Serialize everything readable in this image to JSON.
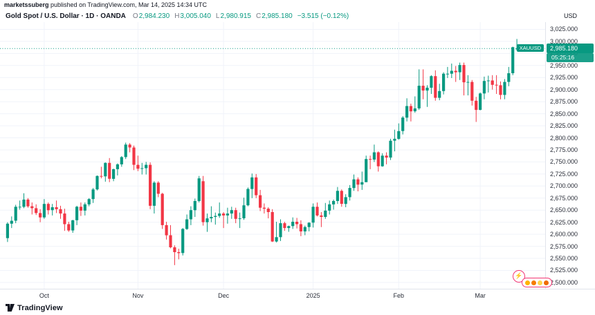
{
  "publisher_bar": {
    "author": "marketssuberg",
    "text": " published on TradingView.com, Mar 14, 2025 14:34 UTC"
  },
  "header": {
    "symbol_title": "Gold Spot / U.S. Dollar · 1D · OANDA",
    "ohlc": {
      "o_label": "O",
      "o": "2,984.230",
      "h_label": "H",
      "h": "3,005.040",
      "l_label": "L",
      "l": "2,980.915",
      "c_label": "C",
      "c": "2,985.180",
      "change": "−3.515 (−0.12%)"
    }
  },
  "price_line": {
    "symbol_label": "XAUUSD",
    "price_label": "2,985.180",
    "countdown": "05:25:16"
  },
  "price_axis": {
    "currency": "USD"
  },
  "footer": {
    "logo_text": "TradingView"
  },
  "reactions": {
    "lightning": "⚡"
  },
  "chart_data": {
    "type": "candlestick",
    "title": "Gold Spot / U.S. Dollar, 1D, OANDA",
    "symbol": "XAUUSD",
    "ylabel": "USD",
    "ylim": [
      2487,
      3040
    ],
    "grid": true,
    "colors": {
      "up": "#089981",
      "down": "#f23645"
    },
    "last_price": 2985.18,
    "last_ohlc": {
      "open": 2984.23,
      "high": 3005.04,
      "low": 2980.915,
      "close": 2985.18
    },
    "price_ticks": [
      3025,
      3000,
      2975,
      2950,
      2925,
      2900,
      2875,
      2850,
      2825,
      2800,
      2775,
      2750,
      2725,
      2700,
      2675,
      2650,
      2625,
      2600,
      2575,
      2550,
      2525,
      2500
    ],
    "time_ticks": [
      {
        "label": "Oct",
        "index": 9
      },
      {
        "label": "Nov",
        "index": 32
      },
      {
        "label": "Dec",
        "index": 53
      },
      {
        "label": "2025",
        "index": 75
      },
      {
        "label": "Feb",
        "index": 96
      },
      {
        "label": "Mar",
        "index": 116
      }
    ],
    "candles": [
      [
        2592,
        2625,
        2584,
        2622
      ],
      [
        2622,
        2637,
        2613,
        2628
      ],
      [
        2628,
        2661,
        2623,
        2657
      ],
      [
        2657,
        2670,
        2651,
        2657
      ],
      [
        2657,
        2685,
        2654,
        2672
      ],
      [
        2672,
        2675,
        2655,
        2658
      ],
      [
        2658,
        2666,
        2641,
        2654
      ],
      [
        2654,
        2662,
        2640,
        2644
      ],
      [
        2644,
        2652,
        2625,
        2635
      ],
      [
        2635,
        2673,
        2632,
        2663
      ],
      [
        2663,
        2666,
        2641,
        2650
      ],
      [
        2650,
        2663,
        2639,
        2656
      ],
      [
        2656,
        2670,
        2644,
        2652
      ],
      [
        2652,
        2659,
        2632,
        2643
      ],
      [
        2643,
        2653,
        2607,
        2621
      ],
      [
        2621,
        2626,
        2605,
        2608
      ],
      [
        2608,
        2630,
        2603,
        2629
      ],
      [
        2629,
        2659,
        2619,
        2657
      ],
      [
        2657,
        2666,
        2638,
        2649
      ],
      [
        2649,
        2666,
        2639,
        2662
      ],
      [
        2662,
        2675,
        2658,
        2673
      ],
      [
        2673,
        2696,
        2665,
        2693
      ],
      [
        2693,
        2722,
        2691,
        2721
      ],
      [
        2721,
        2740,
        2716,
        2720
      ],
      [
        2720,
        2749,
        2709,
        2748
      ],
      [
        2748,
        2758,
        2708,
        2715
      ],
      [
        2715,
        2736,
        2710,
        2735
      ],
      [
        2735,
        2747,
        2722,
        2745
      ],
      [
        2745,
        2762,
        2740,
        2760
      ],
      [
        2760,
        2790,
        2756,
        2786
      ],
      [
        2786,
        2789,
        2770,
        2780
      ],
      [
        2780,
        2784,
        2733,
        2744
      ],
      [
        2744,
        2763,
        2731,
        2736
      ],
      [
        2736,
        2748,
        2724,
        2737
      ],
      [
        2737,
        2750,
        2724,
        2744
      ],
      [
        2744,
        2749,
        2652,
        2659
      ],
      [
        2659,
        2710,
        2643,
        2707
      ],
      [
        2707,
        2710,
        2677,
        2684
      ],
      [
        2684,
        2686,
        2611,
        2619
      ],
      [
        2619,
        2626,
        2589,
        2598
      ],
      [
        2598,
        2619,
        2571,
        2573
      ],
      [
        2573,
        2577,
        2536,
        2563
      ],
      [
        2563,
        2570,
        2548,
        2561
      ],
      [
        2561,
        2613,
        2556,
        2611
      ],
      [
        2611,
        2641,
        2609,
        2631
      ],
      [
        2631,
        2658,
        2619,
        2650
      ],
      [
        2650,
        2674,
        2636,
        2669
      ],
      [
        2669,
        2721,
        2666,
        2716
      ],
      [
        2710,
        2721,
        2618,
        2625
      ],
      [
        2625,
        2643,
        2605,
        2633
      ],
      [
        2633,
        2658,
        2625,
        2636
      ],
      [
        2636,
        2645,
        2620,
        2638
      ],
      [
        2638,
        2666,
        2634,
        2643
      ],
      [
        2643,
        2646,
        2613,
        2639
      ],
      [
        2639,
        2655,
        2622,
        2643
      ],
      [
        2643,
        2657,
        2632,
        2650
      ],
      [
        2650,
        2655,
        2623,
        2632
      ],
      [
        2632,
        2645,
        2613,
        2633
      ],
      [
        2633,
        2676,
        2630,
        2660
      ],
      [
        2660,
        2697,
        2658,
        2694
      ],
      [
        2694,
        2726,
        2675,
        2718
      ],
      [
        2718,
        2725,
        2675,
        2681
      ],
      [
        2681,
        2692,
        2648,
        2655
      ],
      [
        2655,
        2664,
        2643,
        2653
      ],
      [
        2653,
        2656,
        2633,
        2646
      ],
      [
        2646,
        2652,
        2584,
        2585
      ],
      [
        2585,
        2626,
        2583,
        2594
      ],
      [
        2594,
        2631,
        2586,
        2623
      ],
      [
        2623,
        2626,
        2607,
        2613
      ],
      [
        2613,
        2618,
        2605,
        2617
      ],
      [
        2617,
        2635,
        2611,
        2626
      ],
      [
        2626,
        2634,
        2612,
        2621
      ],
      [
        2621,
        2629,
        2596,
        2606
      ],
      [
        2606,
        2618,
        2598,
        2615
      ],
      [
        2615,
        2625,
        2606,
        2624
      ],
      [
        2624,
        2664,
        2614,
        2657
      ],
      [
        2657,
        2666,
        2637,
        2639
      ],
      [
        2639,
        2646,
        2615,
        2636
      ],
      [
        2636,
        2665,
        2632,
        2649
      ],
      [
        2649,
        2670,
        2641,
        2662
      ],
      [
        2662,
        2672,
        2651,
        2669
      ],
      [
        2669,
        2698,
        2663,
        2690
      ],
      [
        2690,
        2693,
        2657,
        2663
      ],
      [
        2663,
        2683,
        2656,
        2677
      ],
      [
        2677,
        2702,
        2670,
        2696
      ],
      [
        2696,
        2724,
        2690,
        2714
      ],
      [
        2714,
        2718,
        2689,
        2703
      ],
      [
        2703,
        2730,
        2692,
        2708
      ],
      [
        2708,
        2763,
        2708,
        2756
      ],
      [
        2756,
        2763,
        2735,
        2755
      ],
      [
        2755,
        2786,
        2750,
        2770
      ],
      [
        2770,
        2772,
        2730,
        2741
      ],
      [
        2741,
        2768,
        2740,
        2763
      ],
      [
        2763,
        2770,
        2745,
        2759
      ],
      [
        2759,
        2798,
        2754,
        2794
      ],
      [
        2794,
        2817,
        2772,
        2798
      ],
      [
        2798,
        2830,
        2796,
        2814
      ],
      [
        2814,
        2845,
        2807,
        2842
      ],
      [
        2842,
        2882,
        2834,
        2866
      ],
      [
        2866,
        2871,
        2834,
        2855
      ],
      [
        2855,
        2886,
        2852,
        2861
      ],
      [
        2861,
        2942,
        2858,
        2908
      ],
      [
        2908,
        2942,
        2880,
        2898
      ],
      [
        2898,
        2909,
        2864,
        2904
      ],
      [
        2904,
        2930,
        2891,
        2928
      ],
      [
        2928,
        2940,
        2877,
        2883
      ],
      [
        2883,
        2912,
        2878,
        2897
      ],
      [
        2897,
        2936,
        2890,
        2933
      ],
      [
        2933,
        2947,
        2924,
        2933
      ],
      [
        2933,
        2954,
        2924,
        2939
      ],
      [
        2939,
        2949,
        2916,
        2936
      ],
      [
        2936,
        2956,
        2920,
        2951
      ],
      [
        2951,
        2956,
        2888,
        2915
      ],
      [
        2915,
        2930,
        2888,
        2916
      ],
      [
        2916,
        2920,
        2867,
        2877
      ],
      [
        2877,
        2885,
        2833,
        2858
      ],
      [
        2858,
        2894,
        2857,
        2892
      ],
      [
        2892,
        2927,
        2880,
        2918
      ],
      [
        2918,
        2929,
        2894,
        2919
      ],
      [
        2919,
        2930,
        2900,
        2910
      ],
      [
        2910,
        2930,
        2891,
        2909
      ],
      [
        2909,
        2917,
        2880,
        2889
      ],
      [
        2889,
        2922,
        2880,
        2916
      ],
      [
        2916,
        2947,
        2907,
        2934
      ],
      [
        2934,
        2989,
        2930,
        2988
      ],
      [
        2984.23,
        3005.04,
        2980.915,
        2985.18
      ]
    ]
  }
}
